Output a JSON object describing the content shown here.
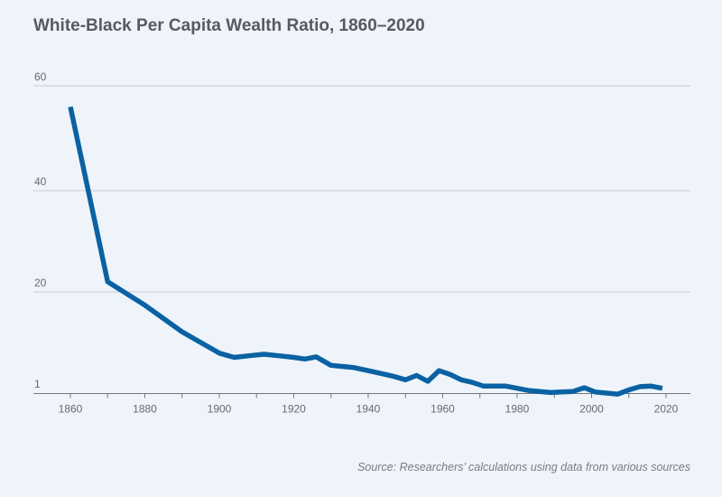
{
  "title": "White-Black Per Capita Wealth Ratio, 1860–2020",
  "source": "Source: Researchers’ calculations using data from various sources",
  "colors": {
    "line": "#0a62a3",
    "grid": "#c8cdd2",
    "axis": "#777777",
    "text": "#666a6e"
  },
  "chart_data": {
    "type": "line",
    "title": "White-Black Per Capita Wealth Ratio, 1860–2020",
    "xlabel": "",
    "ylabel": "",
    "xlim": [
      1850,
      2025
    ],
    "ylim": [
      1,
      60
    ],
    "x_ticks": [
      1860,
      1880,
      1900,
      1920,
      1940,
      1960,
      1980,
      2000,
      2020
    ],
    "y_ticks": [
      1,
      20,
      40,
      60
    ],
    "grid": "horizontal",
    "series": [
      {
        "x": [
          1860,
          1870,
          1880,
          1890,
          1900,
          1904,
          1908,
          1912,
          1916,
          1920,
          1923,
          1926,
          1930,
          1933,
          1936,
          1940,
          1944,
          1947,
          1950,
          1953,
          1956,
          1959,
          1962,
          1965,
          1968,
          1971,
          1974,
          1977,
          1980,
          1983,
          1986,
          1989,
          1992,
          1995,
          1998,
          2001,
          2004,
          2007,
          2010,
          2013,
          2016,
          2019
        ],
        "y": [
          56,
          22,
          17.5,
          12.5,
          8.5,
          7.7,
          8.0,
          8.3,
          8.0,
          7.7,
          7.4,
          7.8,
          6.2,
          6.0,
          5.8,
          5.2,
          4.6,
          4.1,
          3.5,
          4.3,
          3.2,
          5.2,
          4.5,
          3.5,
          3.0,
          2.3,
          2.3,
          2.3,
          1.9,
          1.5,
          1.3,
          1.1,
          1.2,
          1.3,
          2.0,
          1.2,
          1.0,
          0.8,
          1.6,
          2.2,
          2.3,
          1.9
        ]
      }
    ]
  }
}
